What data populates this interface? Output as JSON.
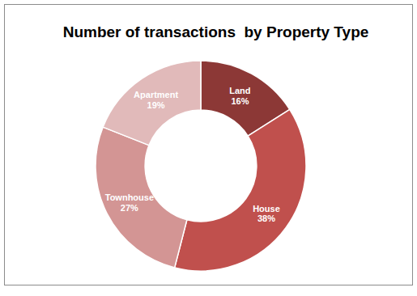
{
  "chart_data": {
    "type": "pie",
    "title": "Number of transactions  by Property Type",
    "categories": [
      "Land",
      "House",
      "Townhouse",
      "Apartment"
    ],
    "values": [
      16,
      38,
      27,
      19
    ],
    "value_labels": [
      "16%",
      "38%",
      "27%",
      "19%"
    ],
    "colors": [
      "#8c3836",
      "#c0504d",
      "#d39594",
      "#e1baba"
    ],
    "data_labels": true
  }
}
